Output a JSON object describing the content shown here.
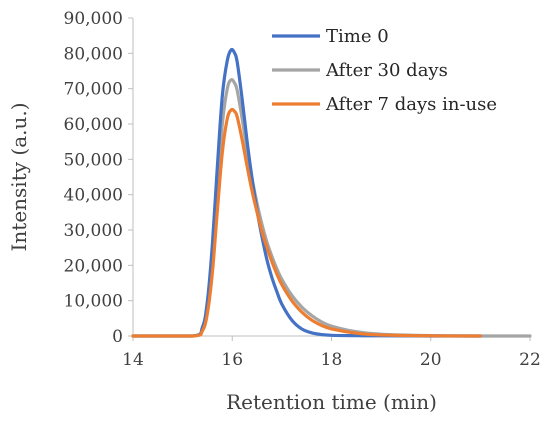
{
  "chart_data": {
    "type": "line",
    "title": "",
    "xlabel": "Retention time (min)",
    "ylabel": "Intensity (a.u.)",
    "xlim": [
      14,
      22
    ],
    "ylim": [
      0,
      90000
    ],
    "x_ticks": [
      14,
      16,
      18,
      20,
      22
    ],
    "x_tick_labels": [
      "14",
      "16",
      "18",
      "20",
      "22"
    ],
    "y_ticks": [
      0,
      10000,
      20000,
      30000,
      40000,
      50000,
      60000,
      70000,
      80000,
      90000
    ],
    "y_tick_labels": [
      "0",
      "10,000",
      "20,000",
      "30,000",
      "40,000",
      "50,000",
      "60,000",
      "70,000",
      "80,000",
      "90,000"
    ],
    "grid": false,
    "legend_position": "top-right",
    "series": [
      {
        "name": "Time 0",
        "color": "#4472C4",
        "x": [
          14.0,
          15.2,
          15.4,
          15.5,
          15.6,
          15.7,
          15.8,
          15.9,
          15.98,
          16.05,
          16.1,
          16.2,
          16.3,
          16.4,
          16.5,
          16.6,
          16.7,
          16.8,
          16.9,
          17.0,
          17.2,
          17.4,
          17.6,
          17.8,
          18.0,
          18.5,
          19.0,
          20.0,
          21.0
        ],
        "y": [
          0,
          0,
          2500,
          10000,
          26000,
          48000,
          68000,
          78000,
          81000,
          80000,
          77500,
          67000,
          55000,
          44500,
          35500,
          28000,
          21500,
          16500,
          12500,
          9000,
          4500,
          2000,
          900,
          400,
          200,
          100,
          50,
          0,
          0
        ]
      },
      {
        "name": "After 30 days",
        "color": "#A5A5A5",
        "x": [
          14.0,
          15.2,
          15.4,
          15.5,
          15.6,
          15.7,
          15.8,
          15.9,
          15.98,
          16.05,
          16.1,
          16.2,
          16.3,
          16.4,
          16.5,
          16.6,
          16.7,
          16.8,
          16.9,
          17.0,
          17.2,
          17.4,
          17.6,
          17.8,
          18.0,
          18.5,
          19.0,
          20.0,
          21.0,
          22.0
        ],
        "y": [
          0,
          0,
          2000,
          8000,
          22000,
          42000,
          60000,
          70000,
          72500,
          71500,
          69500,
          61500,
          52500,
          44500,
          37500,
          31500,
          26500,
          22500,
          19000,
          16000,
          11500,
          8200,
          5800,
          4000,
          2800,
          1200,
          500,
          100,
          0,
          0
        ]
      },
      {
        "name": "After 7 days in-use",
        "color": "#ED7D31",
        "x": [
          14.0,
          15.2,
          15.4,
          15.5,
          15.6,
          15.7,
          15.8,
          15.9,
          15.98,
          16.05,
          16.1,
          16.2,
          16.3,
          16.4,
          16.5,
          16.6,
          16.7,
          16.8,
          16.9,
          17.0,
          17.2,
          17.4,
          17.6,
          17.8,
          18.0,
          18.5,
          19.0,
          20.0,
          21.0
        ],
        "y": [
          0,
          0,
          1500,
          6500,
          18000,
          35500,
          52000,
          61500,
          64000,
          63500,
          62000,
          55500,
          48000,
          41000,
          35000,
          29500,
          25000,
          21000,
          17500,
          14500,
          10000,
          6800,
          4500,
          3000,
          2000,
          800,
          300,
          50,
          0
        ]
      }
    ]
  }
}
